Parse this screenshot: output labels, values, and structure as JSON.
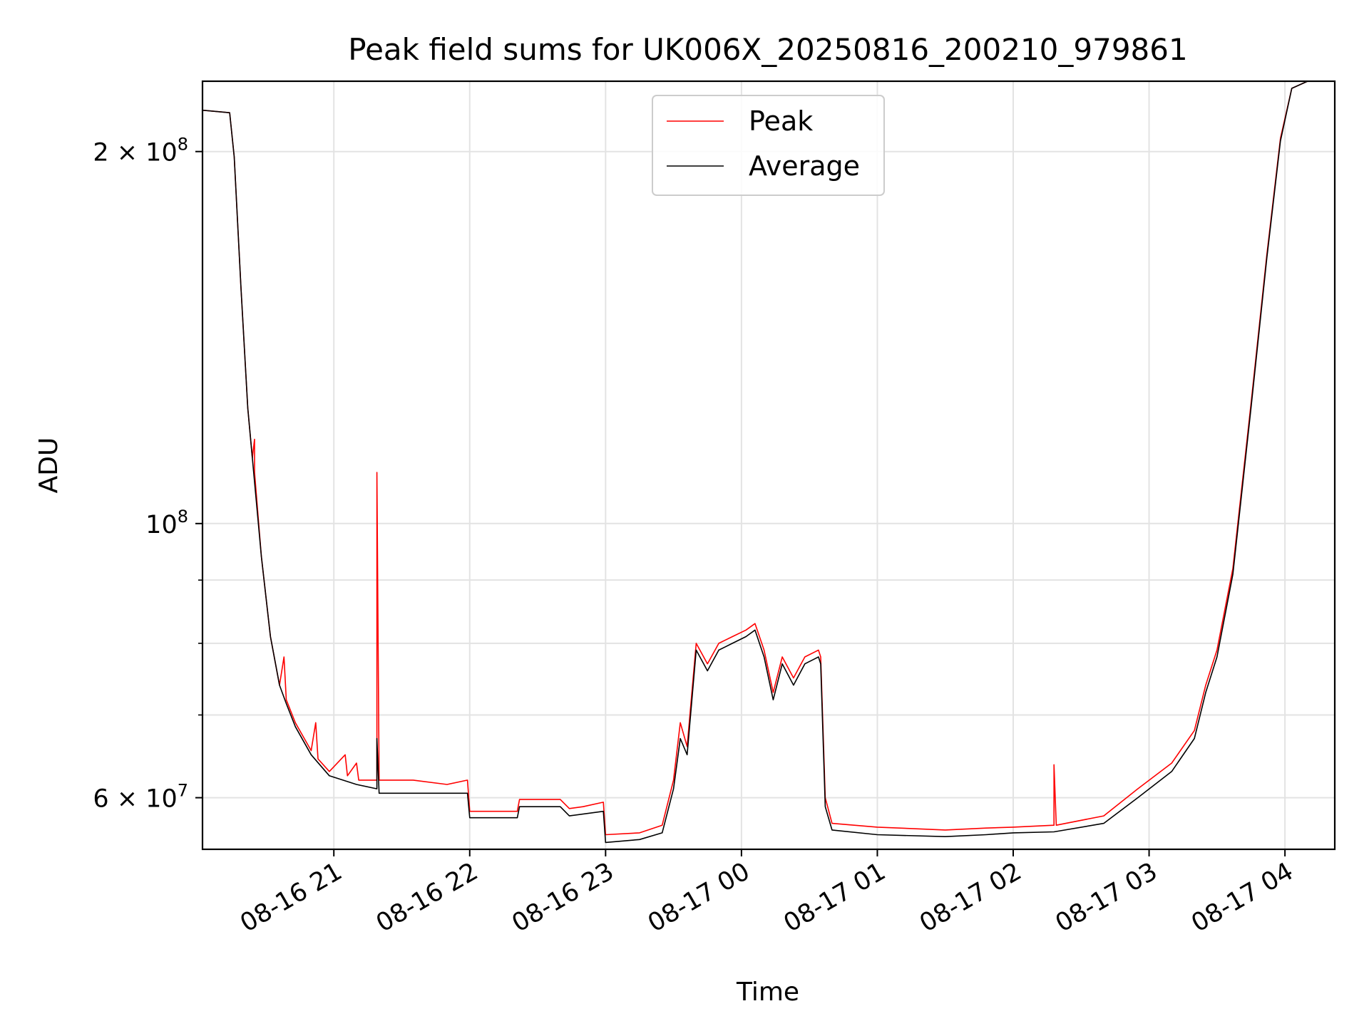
{
  "chart_data": {
    "type": "line",
    "title": "Peak field sums for UK006X_20250816_200210_979861",
    "xlabel": "Time",
    "ylabel": "ADU",
    "y_scale": "log",
    "x_range": [
      "2025-08-16 20:02",
      "2025-08-17 04:22"
    ],
    "ylim": [
      54500000,
      228000000
    ],
    "grid": true,
    "legend_position": "upper center",
    "x_ticks": [
      {
        "time": "2025-08-16 21:00",
        "label": "08-16 21"
      },
      {
        "time": "2025-08-16 22:00",
        "label": "08-16 22"
      },
      {
        "time": "2025-08-16 23:00",
        "label": "08-16 23"
      },
      {
        "time": "2025-08-17 00:00",
        "label": "08-17 00"
      },
      {
        "time": "2025-08-17 01:00",
        "label": "08-17 01"
      },
      {
        "time": "2025-08-17 02:00",
        "label": "08-17 02"
      },
      {
        "time": "2025-08-17 03:00",
        "label": "08-17 03"
      },
      {
        "time": "2025-08-17 04:00",
        "label": "08-17 04"
      }
    ],
    "y_ticks": [
      {
        "value": 60000000,
        "base": "6 × 10",
        "exp": "7"
      },
      {
        "value": 100000000,
        "base": "10",
        "exp": "8"
      },
      {
        "value": 200000000,
        "base": "2 × 10",
        "exp": "8"
      }
    ],
    "y_minor_ticks": [
      70000000,
      80000000,
      90000000
    ],
    "series": [
      {
        "name": "Peak",
        "color": "#ff0000",
        "points": [
          [
            "2025-08-16 20:02",
            216000000.0
          ],
          [
            "2025-08-16 20:14",
            215000000.0
          ],
          [
            "2025-08-16 20:16",
            198000000.0
          ],
          [
            "2025-08-16 20:19",
            155000000.0
          ],
          [
            "2025-08-16 20:22",
            124000000.0
          ],
          [
            "2025-08-16 20:24",
            113000000.0
          ],
          [
            "2025-08-16 20:25",
            117000000.0
          ],
          [
            "2025-08-16 20:25",
            110000000.0
          ],
          [
            "2025-08-16 20:28",
            94000000.0
          ],
          [
            "2025-08-16 20:32",
            81000000.0
          ],
          [
            "2025-08-16 20:36",
            74000000.0
          ],
          [
            "2025-08-16 20:38",
            78000000.0
          ],
          [
            "2025-08-16 20:39",
            72000000.0
          ],
          [
            "2025-08-16 20:43",
            69000000.0
          ],
          [
            "2025-08-16 20:50",
            65500000.0
          ],
          [
            "2025-08-16 20:52",
            69000000.0
          ],
          [
            "2025-08-16 20:53",
            64500000.0
          ],
          [
            "2025-08-16 20:58",
            63000000.0
          ],
          [
            "2025-08-16 21:05",
            65000000.0
          ],
          [
            "2025-08-16 21:06",
            62500000.0
          ],
          [
            "2025-08-16 21:10",
            64000000.0
          ],
          [
            "2025-08-16 21:11",
            62000000.0
          ],
          [
            "2025-08-16 21:19",
            62000000.0
          ],
          [
            "2025-08-16 21:19",
            110000000.0
          ],
          [
            "2025-08-16 21:20",
            62000000.0
          ],
          [
            "2025-08-16 21:35",
            62000000.0
          ],
          [
            "2025-08-16 21:50",
            61500000.0
          ],
          [
            "2025-08-16 21:59",
            62000000.0
          ],
          [
            "2025-08-16 22:00",
            58500000.0
          ],
          [
            "2025-08-16 22:10",
            58500000.0
          ],
          [
            "2025-08-16 22:21",
            58500000.0
          ],
          [
            "2025-08-16 22:22",
            59800000.0
          ],
          [
            "2025-08-16 22:40",
            59800000.0
          ],
          [
            "2025-08-16 22:44",
            58800000.0
          ],
          [
            "2025-08-16 22:50",
            59000000.0
          ],
          [
            "2025-08-16 22:59",
            59500000.0
          ],
          [
            "2025-08-16 23:00",
            56000000.0
          ],
          [
            "2025-08-16 23:15",
            56200000.0
          ],
          [
            "2025-08-16 23:25",
            57000000.0
          ],
          [
            "2025-08-16 23:30",
            62000000.0
          ],
          [
            "2025-08-16 23:33",
            69000000.0
          ],
          [
            "2025-08-16 23:36",
            66000000.0
          ],
          [
            "2025-08-16 23:40",
            80000000.0
          ],
          [
            "2025-08-16 23:45",
            77000000.0
          ],
          [
            "2025-08-16 23:50",
            80000000.0
          ],
          [
            "2025-08-16 23:56",
            81000000.0
          ],
          [
            "2025-08-17 00:02",
            82000000.0
          ],
          [
            "2025-08-17 00:06",
            83000000.0
          ],
          [
            "2025-08-17 00:10",
            79000000.0
          ],
          [
            "2025-08-17 00:14",
            73000000.0
          ],
          [
            "2025-08-17 00:18",
            78000000.0
          ],
          [
            "2025-08-17 00:23",
            75000000.0
          ],
          [
            "2025-08-17 00:28",
            78000000.0
          ],
          [
            "2025-08-17 00:34",
            79000000.0
          ],
          [
            "2025-08-17 00:35",
            78000000.0
          ],
          [
            "2025-08-17 00:37",
            60000000.0
          ],
          [
            "2025-08-17 00:40",
            57200000.0
          ],
          [
            "2025-08-17 01:00",
            56800000.0
          ],
          [
            "2025-08-17 01:30",
            56500000.0
          ],
          [
            "2025-08-17 01:48",
            56700000.0
          ],
          [
            "2025-08-17 02:00",
            56800000.0
          ],
          [
            "2025-08-17 02:18",
            57000000.0
          ],
          [
            "2025-08-17 02:18",
            63800000.0
          ],
          [
            "2025-08-17 02:19",
            57000000.0
          ],
          [
            "2025-08-17 02:40",
            58000000.0
          ],
          [
            "2025-08-17 02:55",
            61000000.0
          ],
          [
            "2025-08-17 03:10",
            64000000.0
          ],
          [
            "2025-08-17 03:20",
            68000000.0
          ],
          [
            "2025-08-17 03:25",
            74000000.0
          ],
          [
            "2025-08-17 03:30",
            79000000.0
          ],
          [
            "2025-08-17 03:37",
            92000000.0
          ],
          [
            "2025-08-17 03:45",
            125000000.0
          ],
          [
            "2025-08-17 03:52",
            165000000.0
          ],
          [
            "2025-08-17 03:58",
            205000000.0
          ],
          [
            "2025-08-17 04:03",
            225000000.0
          ],
          [
            "2025-08-17 04:10",
            228000000.0
          ]
        ]
      },
      {
        "name": "Average",
        "color": "#000000",
        "points": [
          [
            "2025-08-16 20:02",
            216000000.0
          ],
          [
            "2025-08-16 20:14",
            215000000.0
          ],
          [
            "2025-08-16 20:16",
            198000000.0
          ],
          [
            "2025-08-16 20:19",
            155000000.0
          ],
          [
            "2025-08-16 20:22",
            124000000.0
          ],
          [
            "2025-08-16 20:24",
            113000000.0
          ],
          [
            "2025-08-16 20:28",
            94000000.0
          ],
          [
            "2025-08-16 20:32",
            81000000.0
          ],
          [
            "2025-08-16 20:36",
            74000000.0
          ],
          [
            "2025-08-16 20:39",
            71500000.0
          ],
          [
            "2025-08-16 20:43",
            68500000.0
          ],
          [
            "2025-08-16 20:50",
            65000000.0
          ],
          [
            "2025-08-16 20:58",
            62500000.0
          ],
          [
            "2025-08-16 21:10",
            61500000.0
          ],
          [
            "2025-08-16 21:19",
            61000000.0
          ],
          [
            "2025-08-16 21:19",
            67000000.0
          ],
          [
            "2025-08-16 21:20",
            60500000.0
          ],
          [
            "2025-08-16 21:40",
            60500000.0
          ],
          [
            "2025-08-16 21:59",
            60500000.0
          ],
          [
            "2025-08-16 22:00",
            57800000.0
          ],
          [
            "2025-08-16 22:21",
            57800000.0
          ],
          [
            "2025-08-16 22:22",
            59000000.0
          ],
          [
            "2025-08-16 22:40",
            59000000.0
          ],
          [
            "2025-08-16 22:44",
            58000000.0
          ],
          [
            "2025-08-16 22:59",
            58500000.0
          ],
          [
            "2025-08-16 23:00",
            55200000.0
          ],
          [
            "2025-08-16 23:15",
            55500000.0
          ],
          [
            "2025-08-16 23:25",
            56200000.0
          ],
          [
            "2025-08-16 23:30",
            61000000.0
          ],
          [
            "2025-08-16 23:33",
            67000000.0
          ],
          [
            "2025-08-16 23:36",
            65000000.0
          ],
          [
            "2025-08-16 23:40",
            79000000.0
          ],
          [
            "2025-08-16 23:45",
            76000000.0
          ],
          [
            "2025-08-16 23:50",
            79000000.0
          ],
          [
            "2025-08-16 23:56",
            80000000.0
          ],
          [
            "2025-08-17 00:02",
            81000000.0
          ],
          [
            "2025-08-17 00:06",
            82000000.0
          ],
          [
            "2025-08-17 00:10",
            78000000.0
          ],
          [
            "2025-08-17 00:14",
            72000000.0
          ],
          [
            "2025-08-17 00:18",
            77000000.0
          ],
          [
            "2025-08-17 00:23",
            74000000.0
          ],
          [
            "2025-08-17 00:28",
            77000000.0
          ],
          [
            "2025-08-17 00:34",
            78000000.0
          ],
          [
            "2025-08-17 00:35",
            77000000.0
          ],
          [
            "2025-08-17 00:37",
            59000000.0
          ],
          [
            "2025-08-17 00:40",
            56500000.0
          ],
          [
            "2025-08-17 01:00",
            56000000.0
          ],
          [
            "2025-08-17 01:30",
            55800000.0
          ],
          [
            "2025-08-17 01:48",
            56000000.0
          ],
          [
            "2025-08-17 02:00",
            56200000.0
          ],
          [
            "2025-08-17 02:18",
            56300000.0
          ],
          [
            "2025-08-17 02:40",
            57200000.0
          ],
          [
            "2025-08-17 02:55",
            60000000.0
          ],
          [
            "2025-08-17 03:10",
            63000000.0
          ],
          [
            "2025-08-17 03:20",
            67000000.0
          ],
          [
            "2025-08-17 03:25",
            73000000.0
          ],
          [
            "2025-08-17 03:30",
            78000000.0
          ],
          [
            "2025-08-17 03:37",
            91000000.0
          ],
          [
            "2025-08-17 03:45",
            124000000.0
          ],
          [
            "2025-08-17 03:52",
            164000000.0
          ],
          [
            "2025-08-17 03:58",
            204000000.0
          ],
          [
            "2025-08-17 04:03",
            225000000.0
          ],
          [
            "2025-08-17 04:10",
            228000000.0
          ]
        ]
      }
    ]
  }
}
